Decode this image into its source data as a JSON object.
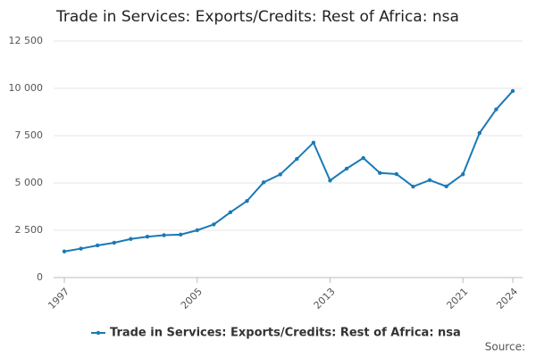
{
  "chart_data": {
    "type": "line",
    "title": "Trade in Services: Exports/Credits: Rest of Africa: nsa",
    "x": [
      1997,
      1998,
      1999,
      2000,
      2001,
      2002,
      2003,
      2004,
      2005,
      2006,
      2007,
      2008,
      2009,
      2010,
      2011,
      2012,
      2013,
      2014,
      2015,
      2016,
      2017,
      2018,
      2019,
      2020,
      2021,
      2022,
      2023,
      2024
    ],
    "series": [
      {
        "name": "Trade in Services: Exports/Credits: Rest of Africa: nsa",
        "color": "#1a7ab5",
        "values": [
          1380,
          1530,
          1700,
          1840,
          2040,
          2160,
          2240,
          2270,
          2500,
          2810,
          3450,
          4050,
          5030,
          5450,
          6270,
          7130,
          5130,
          5760,
          6320,
          5530,
          5470,
          4810,
          5150,
          4820,
          5460,
          7640,
          8890,
          9860
        ]
      }
    ],
    "xlim": [
      1997,
      2024
    ],
    "xticks": [
      1997,
      2005,
      2013,
      2021,
      2024
    ],
    "ylim": [
      0,
      12500
    ],
    "yticks": [
      0,
      {
        "value": 2500,
        "label": "2 500"
      },
      {
        "value": 5000,
        "label": "5 000"
      },
      {
        "value": 7500,
        "label": "7 500"
      },
      {
        "value": 10000,
        "label": "10 000"
      },
      {
        "value": 12500,
        "label": "12 500"
      }
    ],
    "grid": true,
    "legend": "bottom",
    "source": "Source:"
  }
}
